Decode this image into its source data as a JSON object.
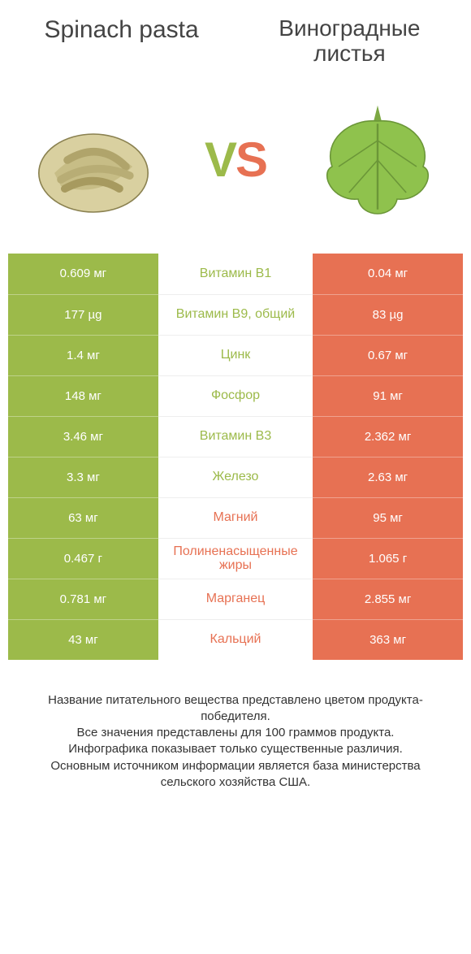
{
  "colors": {
    "green": "#9cba4a",
    "red": "#e77153",
    "vs_left": "#9cba4a",
    "vs_right": "#e77153"
  },
  "header": {
    "left_title": "Spinach pasta",
    "right_title": "Виноградные листья"
  },
  "vs": "VS",
  "rows": [
    {
      "left": "0.609 мг",
      "mid": "Витамин B1",
      "right": "0.04 мг",
      "winner": "left"
    },
    {
      "left": "177 µg",
      "mid": "Витамин B9, общий",
      "right": "83 µg",
      "winner": "left"
    },
    {
      "left": "1.4 мг",
      "mid": "Цинк",
      "right": "0.67 мг",
      "winner": "left"
    },
    {
      "left": "148 мг",
      "mid": "Фосфор",
      "right": "91 мг",
      "winner": "left"
    },
    {
      "left": "3.46 мг",
      "mid": "Витамин B3",
      "right": "2.362 мг",
      "winner": "left"
    },
    {
      "left": "3.3 мг",
      "mid": "Железо",
      "right": "2.63 мг",
      "winner": "left"
    },
    {
      "left": "63 мг",
      "mid": "Магний",
      "right": "95 мг",
      "winner": "right"
    },
    {
      "left": "0.467 г",
      "mid": "Полиненасыщенные жиры",
      "right": "1.065 г",
      "winner": "right"
    },
    {
      "left": "0.781 мг",
      "mid": "Марганец",
      "right": "2.855 мг",
      "winner": "right"
    },
    {
      "left": "43 мг",
      "mid": "Кальций",
      "right": "363 мг",
      "winner": "right"
    }
  ],
  "footer": {
    "line1": "Название питательного вещества представлено цветом продукта-победителя.",
    "line2": "Все значения представлены для 100 граммов продукта.",
    "line3": "Инфографика показывает только существенные различия.",
    "line4": "Основным источником информации является база министерства сельского хозяйства США."
  }
}
